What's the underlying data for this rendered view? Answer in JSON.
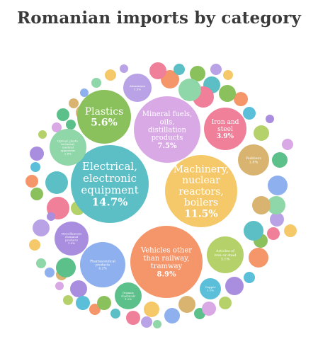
{
  "title": "Romanian imports by category",
  "caption": "",
  "chart_data": {
    "type": "bubble",
    "title": "Romanian imports by category",
    "unit": "%",
    "bubbles": [
      {
        "label": "Electrical, electronic equipment",
        "value": 14.7,
        "value_label": "14.7%",
        "color": "#5bbfc5"
      },
      {
        "label": "Machinery, nuclear reactors, boilers",
        "value": 11.5,
        "value_label": "11.5%",
        "color": "#f5c96a"
      },
      {
        "label": "Vehicles other than railway, tramway",
        "value": 8.9,
        "value_label": "8.9%",
        "color": "#f5956a"
      },
      {
        "label": "Mineral fuels, oils, distillation products",
        "value": 7.5,
        "value_label": "7.5%",
        "color": "#d9a9e6"
      },
      {
        "label": "Plastics",
        "value": 5.6,
        "value_label": "5.6%",
        "color": "#8ac15c"
      },
      {
        "label": "Iron and steel",
        "value": 3.9,
        "value_label": "3.9%",
        "color": "#f07f9a"
      },
      {
        "label": "Pharmaceutical products",
        "value": 4.2,
        "value_label": "4.2%",
        "color": "#8eb0ee"
      },
      {
        "label": "Articles of iron or steel",
        "value": 3.1,
        "value_label": "3.1%",
        "color": "#b5d26a"
      },
      {
        "label": "Optical, photo, technical, medical apparatus",
        "value": 2.6,
        "value_label": "2.6%",
        "color": "#8fd6a8"
      },
      {
        "label": "Miscellaneous chemical products",
        "value": 1.9,
        "value_label": "1.9%",
        "color": "#a98ee0"
      },
      {
        "label": "Aluminium",
        "value": 1.5,
        "value_label": "1.5%",
        "color": "#b9a2e6"
      },
      {
        "label": "Rubbers",
        "value": 1.8,
        "value_label": "1.8%",
        "color": "#d9b470"
      },
      {
        "label": "Organic chemicals",
        "value": 1.2,
        "value_label": "1.2%",
        "color": "#5cc08a"
      },
      {
        "label": "Copper",
        "value": 1.1,
        "value_label": "1.1%",
        "color": "#5bbfd9"
      }
    ]
  }
}
